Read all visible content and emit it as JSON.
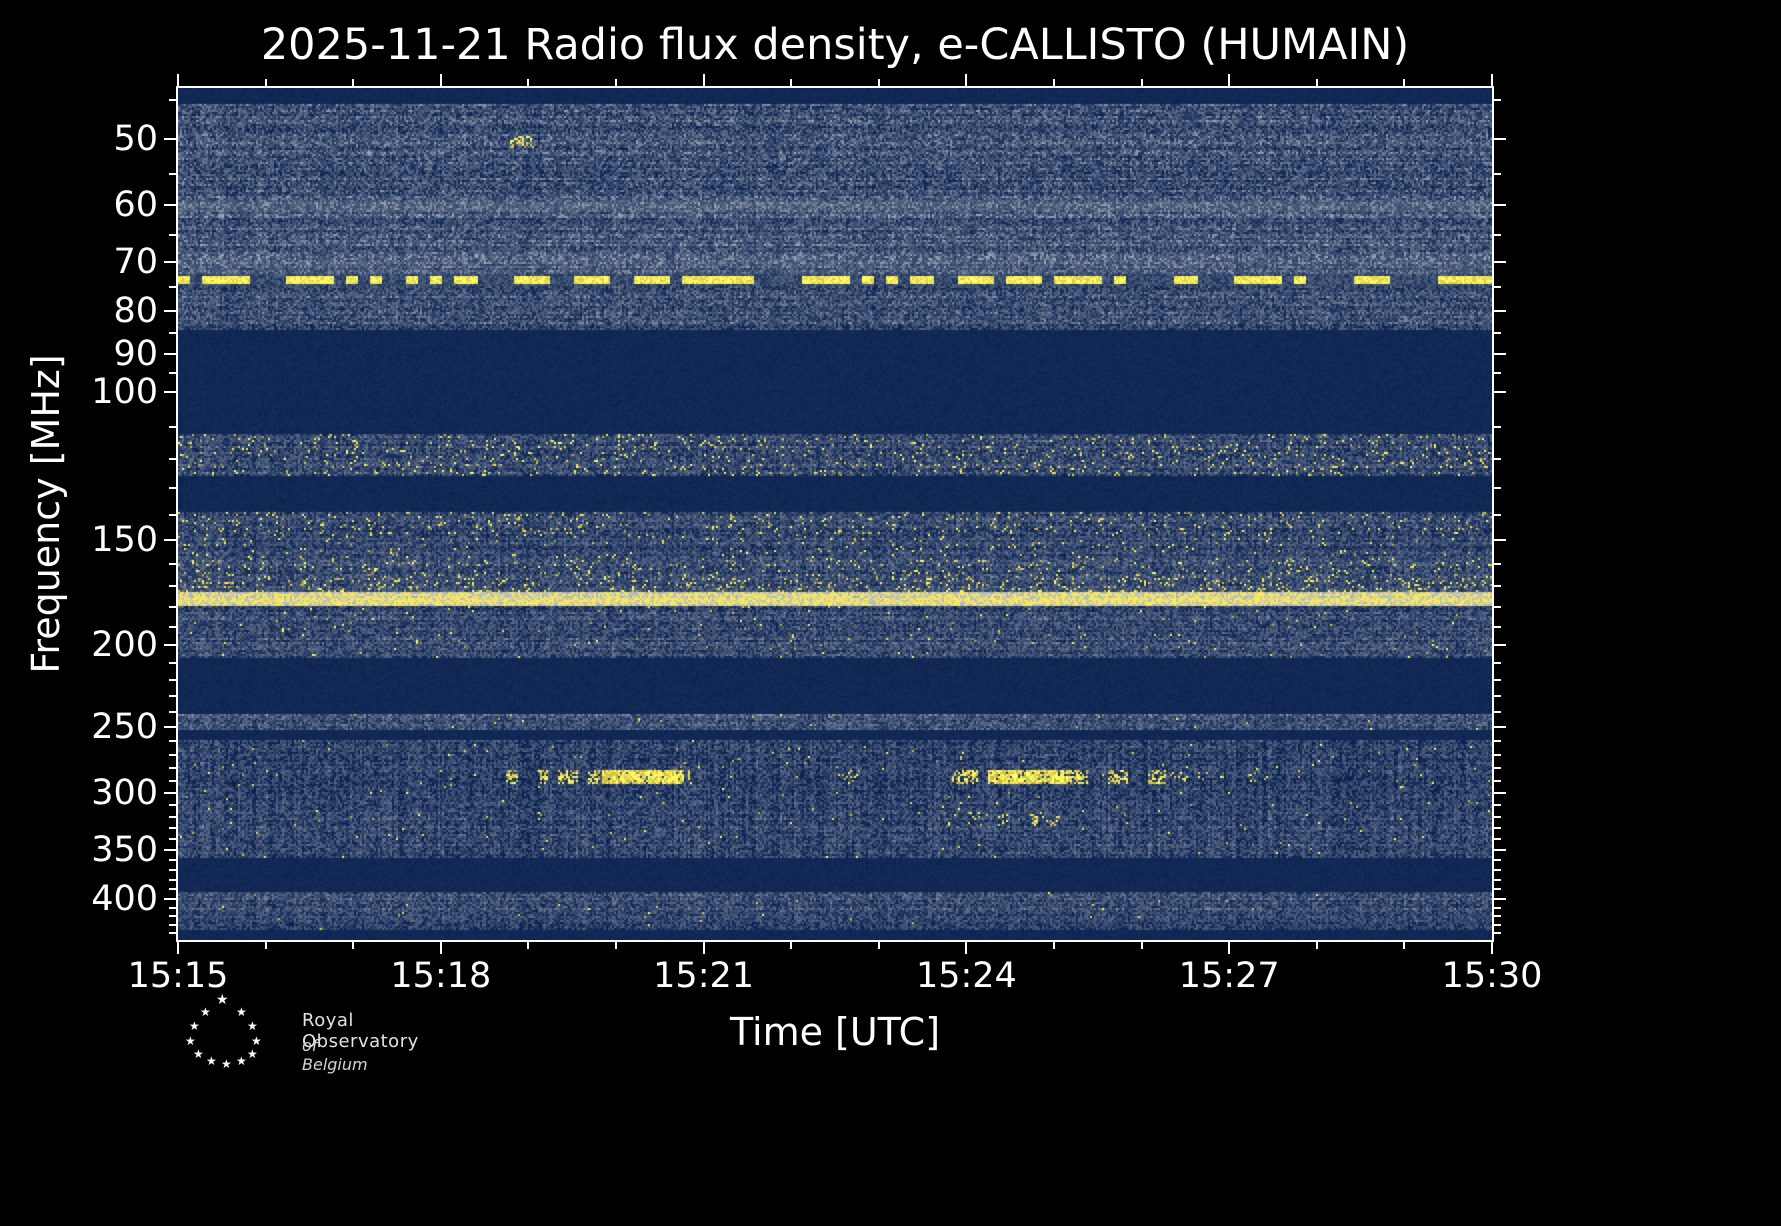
{
  "figure": {
    "title": "2025-11-21 Radio flux density, e-CALLISTO (HUMAIN)",
    "footer_logo": {
      "line1": "Royal Observatory",
      "line2": "of Belgium"
    }
  },
  "chart_data": {
    "type": "heatmap",
    "subtype": "radio-spectrogram",
    "title": "2025-11-21 Radio flux density, e-CALLISTO (HUMAIN)",
    "date": "2025-11-21",
    "instrument": "e-CALLISTO",
    "station": "HUMAIN",
    "x_axis": {
      "label": "Time [UTC]",
      "ticks": [
        "15:15",
        "15:18",
        "15:21",
        "15:24",
        "15:27",
        "15:30"
      ],
      "major_interval_min": 3,
      "minor_interval_min": 1,
      "range": {
        "start_utc": "15:15",
        "end_utc": "15:30",
        "duration_min": 15
      }
    },
    "y_axis": {
      "label": "Frequency [MHz]",
      "scale": "log",
      "direction": "frequency-increases-downward",
      "range_mhz": [
        43.5,
        448
      ],
      "ticks_mhz": [
        50,
        60,
        70,
        80,
        90,
        100,
        150,
        200,
        250,
        300,
        350,
        400
      ],
      "minor_ticks_mhz": [
        45,
        55,
        65,
        75,
        85,
        95,
        110,
        120,
        130,
        140,
        160,
        170,
        180,
        190,
        210,
        220,
        230,
        240,
        260,
        270,
        280,
        290,
        310,
        320,
        330,
        340,
        360,
        370,
        380,
        390,
        410,
        420,
        430,
        440
      ]
    },
    "colors": {
      "background": "#000000",
      "quiet_dark_blue": "#0a2150",
      "noise_mid": "#5c6c88",
      "noise_light": "#b2b9c6",
      "strong_signal_yellow": "#f8ea5f",
      "text": "#ffffff"
    },
    "colorbar": "none shown",
    "bands": [
      {
        "f_lo": 43.5,
        "f_hi": 45.5,
        "style": "blank",
        "desc": "dark quiet strip at top of plot"
      },
      {
        "f_lo": 45.5,
        "f_hi": 59.0,
        "style": "noise",
        "base": 0.34,
        "row_var": 0.1,
        "cell_var": 0.3,
        "col_var": 0.05,
        "speckle": 0.0,
        "desc": "broadband noise with horizontal striping, 46-59 MHz"
      },
      {
        "f_lo": 59.0,
        "f_hi": 61.0,
        "style": "noise",
        "base": 0.46,
        "row_var": 0.06,
        "cell_var": 0.22,
        "col_var": 0.04,
        "speckle": 0.0,
        "desc": "brighter interference line near 60 MHz"
      },
      {
        "f_lo": 61.0,
        "f_hi": 69.5,
        "style": "noise",
        "base": 0.38,
        "row_var": 0.12,
        "cell_var": 0.28,
        "col_var": 0.05,
        "speckle": 0.0,
        "desc": "noise band with wavy texture 61-69 MHz"
      },
      {
        "f_lo": 69.5,
        "f_hi": 72.5,
        "style": "noise",
        "base": 0.44,
        "row_var": 0.08,
        "cell_var": 0.24,
        "col_var": 0.04,
        "speckle": 0.0,
        "desc": "brighter band near 70 MHz"
      },
      {
        "f_lo": 72.5,
        "f_hi": 74.6,
        "style": "dashes",
        "base": 0.3,
        "dash_fill": 0.6,
        "desc": "strong intermittent yellow interference line near 73.5 MHz across full time range"
      },
      {
        "f_lo": 74.6,
        "f_hi": 84.5,
        "style": "noise",
        "base": 0.33,
        "row_var": 0.1,
        "cell_var": 0.28,
        "col_var": 0.05,
        "speckle": 0.0,
        "desc": "noise band 75-84 MHz"
      },
      {
        "f_lo": 84.5,
        "f_hi": 112.0,
        "style": "blank",
        "desc": "quiet dark band 85-112 MHz (FM broadcast range blanked)"
      },
      {
        "f_lo": 112.0,
        "f_hi": 126.0,
        "style": "noise",
        "base": 0.3,
        "row_var": 0.1,
        "cell_var": 0.26,
        "col_var": 0.06,
        "speckle": 0.055,
        "desc": "airband noise with scattered yellow bursts 112-126 MHz"
      },
      {
        "f_lo": 126.0,
        "f_hi": 139.0,
        "style": "blank",
        "desc": "quiet dark band 126-139 MHz"
      },
      {
        "f_lo": 139.0,
        "f_hi": 147.5,
        "style": "noise",
        "base": 0.28,
        "row_var": 0.08,
        "cell_var": 0.26,
        "col_var": 0.06,
        "speckle": 0.05,
        "desc": "noise with yellow speckles near 145 MHz"
      },
      {
        "f_lo": 147.5,
        "f_hi": 158.0,
        "style": "noise",
        "base": 0.27,
        "row_var": 0.08,
        "cell_var": 0.24,
        "col_var": 0.06,
        "speckle": 0.025,
        "desc": "noise band around 150-157 MHz"
      },
      {
        "f_lo": 158.0,
        "f_hi": 166.0,
        "style": "noise",
        "base": 0.29,
        "row_var": 0.08,
        "cell_var": 0.26,
        "col_var": 0.06,
        "speckle": 0.05,
        "desc": "noise with yellow dashes near 160 MHz"
      },
      {
        "f_lo": 166.0,
        "f_hi": 173.0,
        "style": "noise",
        "base": 0.31,
        "row_var": 0.08,
        "cell_var": 0.24,
        "col_var": 0.05,
        "speckle": 0.1,
        "desc": "dense yellow dashes 166-173 MHz"
      },
      {
        "f_lo": 173.0,
        "f_hi": 180.0,
        "style": "yellow",
        "base": 0.93,
        "cell_var": 0.14,
        "desc": "very strong continuous yellow band 174-180 MHz across full time range"
      },
      {
        "f_lo": 180.0,
        "f_hi": 207.0,
        "style": "noise",
        "base": 0.3,
        "row_var": 0.1,
        "cell_var": 0.26,
        "col_var": 0.05,
        "speckle": 0.008,
        "desc": "noise band 180-207 MHz"
      },
      {
        "f_lo": 207.0,
        "f_hi": 242.0,
        "style": "blank",
        "desc": "quiet dark band 207-242 MHz"
      },
      {
        "f_lo": 242.0,
        "f_hi": 252.0,
        "style": "noise",
        "base": 0.36,
        "row_var": 0.08,
        "cell_var": 0.26,
        "col_var": 0.05,
        "speckle": 0.004,
        "desc": "noise band at 250 MHz"
      },
      {
        "f_lo": 252.0,
        "f_hi": 259.0,
        "style": "blank",
        "desc": "thin quiet gap 252-259 MHz"
      },
      {
        "f_lo": 259.0,
        "f_hi": 304.0,
        "style": "noise",
        "base": 0.24,
        "row_var": 0.06,
        "cell_var": 0.26,
        "col_var": 0.1,
        "speckle": 0.006,
        "desc": "wide noise band with vertical striping; hosts 285 MHz burst features"
      },
      {
        "f_lo": 304.0,
        "f_hi": 358.0,
        "style": "noise",
        "base": 0.27,
        "row_var": 0.07,
        "cell_var": 0.26,
        "col_var": 0.09,
        "speckle": 0.004,
        "desc": "noise band 305-355 MHz"
      },
      {
        "f_lo": 358.0,
        "f_hi": 392.0,
        "style": "blank",
        "desc": "quiet dark band 358-392 MHz"
      },
      {
        "f_lo": 392.0,
        "f_hi": 412.0,
        "style": "noise",
        "base": 0.32,
        "row_var": 0.08,
        "cell_var": 0.26,
        "col_var": 0.06,
        "speckle": 0.003,
        "desc": "noise band near 400-410 MHz"
      },
      {
        "f_lo": 412.0,
        "f_hi": 436.0,
        "style": "noise",
        "base": 0.27,
        "row_var": 0.07,
        "cell_var": 0.24,
        "col_var": 0.06,
        "speckle": 0.002,
        "desc": "noise band 412-435 MHz"
      },
      {
        "f_lo": 436.0,
        "f_hi": 448.0,
        "style": "blank",
        "desc": "dark quiet strip at bottom of plot"
      }
    ],
    "features": [
      {
        "utc_start": "15:18:48",
        "utc_end": "15:19:02",
        "f_lo": 49.5,
        "f_hi": 51.0,
        "intensity": "moderate",
        "desc": "small faint yellow spot near 50 MHz"
      },
      {
        "utc_start": "15:18:45",
        "utc_end": "15:20:50",
        "f_lo": 281,
        "f_hi": 291,
        "intensity": "moderate",
        "desc": "first intermittent burst group near 285 MHz"
      },
      {
        "utc_start": "15:19:50",
        "utc_end": "15:20:45",
        "f_lo": 282,
        "f_hi": 290,
        "intensity": "bright",
        "desc": "bright core of first 285 MHz burst"
      },
      {
        "utc_start": "15:22:25",
        "utc_end": "15:23:00",
        "f_lo": 282,
        "f_hi": 290,
        "intensity": "faint",
        "desc": "weak burst near 285 MHz"
      },
      {
        "utc_start": "15:23:50",
        "utc_end": "15:26:15",
        "f_lo": 281,
        "f_hi": 291,
        "intensity": "moderate",
        "desc": "second burst group near 285 MHz"
      },
      {
        "utc_start": "15:24:15",
        "utc_end": "15:25:10",
        "f_lo": 282,
        "f_hi": 290,
        "intensity": "bright",
        "desc": "bright core of second 285 MHz burst group"
      },
      {
        "utc_start": "15:26:15",
        "utc_end": "15:27:45",
        "f_lo": 283,
        "f_hi": 289,
        "intensity": "faint",
        "desc": "sparse trailing weak bursts near 285 MHz"
      },
      {
        "utc_start": "15:23:30",
        "utc_end": "15:25:05",
        "f_lo": 315,
        "f_hi": 327,
        "intensity": "faint",
        "desc": "very faint speckle patch near 320 MHz"
      }
    ]
  }
}
